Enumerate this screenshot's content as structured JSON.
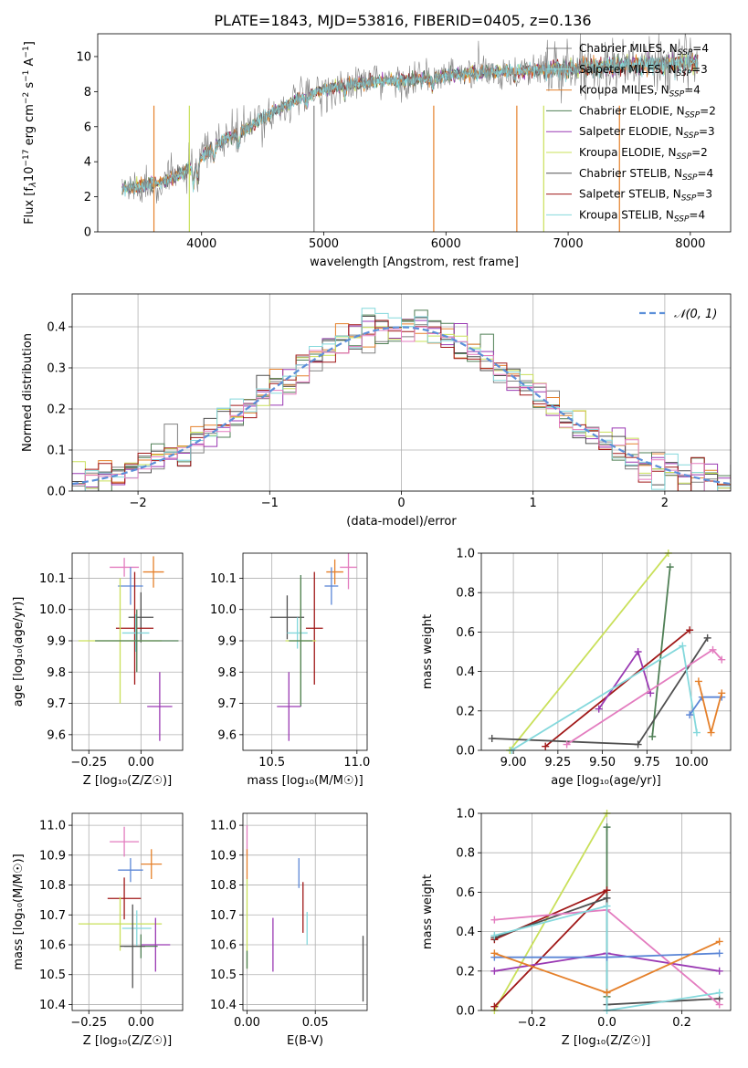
{
  "figure": {
    "title": "PLATE=1843, MJD=53816, FIBERID=0405, z=0.136"
  },
  "palette": {
    "Chabrier MILES": "#808080",
    "Salpeter MILES": "#90dbe0",
    "Kroupa MILES": "#e5802a",
    "Chabrier ELODIE": "#4f7f55",
    "Salpeter ELODIE": "#9a39b3",
    "Kroupa ELODIE": "#c9e05a",
    "Chabrier STELIB": "#505050",
    "Salpeter STELIB": "#a01818",
    "Kroupa STELIB": "#84d8dc",
    "pink": "#e37cbf",
    "blue": "#5b86d6",
    "gaussian": "#5b8fd9"
  },
  "chart_data": [
    {
      "id": "spectrum",
      "type": "line",
      "xlabel": "wavelength [Angstrom, rest frame]",
      "ylabel": "Flux [f$_\\lambda$10$^{-17}$ erg cm$^{-2}$ s$^{-1}$ A$^{-1}$]",
      "xlim": [
        3150,
        8330
      ],
      "ylim": [
        0,
        11.3
      ],
      "xticks": [
        4000,
        5000,
        6000,
        7000,
        8000
      ],
      "yticks": [
        0,
        2,
        4,
        6,
        8,
        10
      ],
      "legend_position": "upper-right",
      "legend": [
        {
          "label": "Chabrier MILES, N$_{SSP}$=4",
          "label_main": "Chabrier MILES, N",
          "label_sub": "SSP",
          "label_tail": "=4",
          "color": "#808080"
        },
        {
          "label": "Salpeter MILES, N$_{SSP}$=3",
          "label_main": "Salpeter MILES, N",
          "label_sub": "SSP",
          "label_tail": "=3",
          "color": "#90dbe0"
        },
        {
          "label": "Kroupa MILES, N$_{SSP}$=4",
          "label_main": "Kroupa MILES, N",
          "label_sub": "SSP",
          "label_tail": "=4",
          "color": "#e5802a"
        },
        {
          "label": "Chabrier ELODIE, N$_{SSP}$=2",
          "label_main": "Chabrier ELODIE, N",
          "label_sub": "SSP",
          "label_tail": "=2",
          "color": "#4f7f55"
        },
        {
          "label": "Salpeter ELODIE, N$_{SSP}$=3",
          "label_main": "Salpeter ELODIE, N",
          "label_sub": "SSP",
          "label_tail": "=3",
          "color": "#9a39b3"
        },
        {
          "label": "Kroupa ELODIE, N$_{SSP}$=2",
          "label_main": "Kroupa ELODIE, N",
          "label_sub": "SSP",
          "label_tail": "=2",
          "color": "#c9e05a"
        },
        {
          "label": "Chabrier STELIB, N$_{SSP}$=4",
          "label_main": "Chabrier STELIB, N",
          "label_sub": "SSP",
          "label_tail": "=4",
          "color": "#505050"
        },
        {
          "label": "Salpeter STELIB, N$_{SSP}$=3",
          "label_main": "Salpeter STELIB, N",
          "label_sub": "SSP",
          "label_tail": "=3",
          "color": "#a01818"
        },
        {
          "label": "Kroupa STELIB, N$_{SSP}$=4",
          "label_main": "Kroupa STELIB, N",
          "label_sub": "SSP",
          "label_tail": "=4",
          "color": "#84d8dc"
        }
      ],
      "continuum": [
        [
          3350,
          2.5
        ],
        [
          3500,
          2.6
        ],
        [
          3700,
          2.9
        ],
        [
          3850,
          3.4
        ],
        [
          3950,
          3.9
        ],
        [
          4050,
          4.6
        ],
        [
          4200,
          5.3
        ],
        [
          4400,
          6.0
        ],
        [
          4600,
          6.9
        ],
        [
          4800,
          7.6
        ],
        [
          5000,
          8.1
        ],
        [
          5200,
          8.4
        ],
        [
          5500,
          8.6
        ],
        [
          5800,
          8.7
        ],
        [
          6000,
          8.9
        ],
        [
          6300,
          9.1
        ],
        [
          6600,
          9.2
        ],
        [
          6900,
          9.3
        ],
        [
          7200,
          9.4
        ],
        [
          7500,
          9.5
        ],
        [
          7800,
          9.6
        ],
        [
          8050,
          9.6
        ]
      ]
    },
    {
      "id": "residuals",
      "type": "line",
      "xlabel": "(data-model)/error",
      "ylabel": "Normed distribution",
      "xlim": [
        -2.5,
        2.5
      ],
      "ylim": [
        0,
        0.48
      ],
      "xticks": [
        -2,
        -1,
        0,
        1,
        2
      ],
      "yticks": [
        0.0,
        0.1,
        0.2,
        0.3,
        0.4
      ],
      "legend_position": "upper-right",
      "legend": [
        {
          "label": "$\\mathcal{N}(0,1)$",
          "label_display": "𝒩(0, 1)",
          "color": "#5b8fd9"
        }
      ],
      "bin_width": 0.1,
      "histogram_colors": [
        "#808080",
        "#e5802a",
        "#4f7f55",
        "#9a39b3",
        "#c9e05a",
        "#505050",
        "#a01818",
        "#84d8dc",
        "#e37cbf"
      ]
    },
    {
      "id": "z-age",
      "type": "scatter",
      "xlabel": "Z [log$_{10}$(Z/Z$_\\odot$)]",
      "xlabel_display": "Z [log₁₀(Z/Z☉)]",
      "ylabel": "age  [log$_{10}$(age/yr)]",
      "ylabel_display": "age  [log₁₀(age/yr)]",
      "xlim": [
        -0.33,
        0.2
      ],
      "ylim": [
        9.55,
        10.18
      ],
      "xticks": [
        -0.25,
        0.0
      ],
      "xtick_labels": [
        "−0.25",
        "0.00"
      ],
      "yticks": [
        9.6,
        9.7,
        9.8,
        9.9,
        10.0,
        10.1
      ],
      "points": [
        {
          "x": -0.08,
          "y": 10.135,
          "xerr": 0.07,
          "yerr": 0.03,
          "color": "#e37cbf"
        },
        {
          "x": 0.06,
          "y": 10.12,
          "xerr": 0.05,
          "yerr": 0.05,
          "color": "#e5802a"
        },
        {
          "x": -0.05,
          "y": 10.075,
          "xerr": 0.06,
          "yerr": 0.06,
          "color": "#5b86d6"
        },
        {
          "x": 0.0,
          "y": 9.975,
          "xerr": 0.06,
          "yerr": 0.08,
          "color": "#505050"
        },
        {
          "x": -0.03,
          "y": 9.94,
          "xerr": 0.09,
          "yerr": 0.18,
          "color": "#a01818"
        },
        {
          "x": -0.025,
          "y": 9.925,
          "xerr": 0.065,
          "yerr": 0.06,
          "color": "#84d8dc"
        },
        {
          "x": -0.1,
          "y": 9.9,
          "xerr": 0.2,
          "yerr": 0.2,
          "color": "#c9e05a"
        },
        {
          "x": -0.02,
          "y": 9.9,
          "xerr": 0.2,
          "yerr": 0.1,
          "color": "#4f7f55"
        },
        {
          "x": 0.09,
          "y": 9.69,
          "xerr": 0.06,
          "yerr": 0.11,
          "color": "#9a39b3"
        }
      ]
    },
    {
      "id": "mass-age",
      "type": "scatter",
      "xlabel": "mass [log$_{10}$(M/M$_\\odot$)]",
      "xlabel_display": "mass [log₁₀(M/M☉)]",
      "ylabel": "",
      "xlim": [
        10.33,
        11.06
      ],
      "ylim": [
        9.55,
        10.18
      ],
      "xticks": [
        10.5,
        11.0
      ],
      "xtick_labels": [
        "10.5",
        "11.0"
      ],
      "yticks": [
        9.6,
        9.7,
        9.8,
        9.9,
        10.0,
        10.1
      ],
      "points": [
        {
          "x": 10.95,
          "y": 10.135,
          "xerr": 0.05,
          "yerr": 0.07,
          "color": "#e37cbf"
        },
        {
          "x": 10.87,
          "y": 10.12,
          "xerr": 0.05,
          "yerr": 0.04,
          "color": "#e5802a"
        },
        {
          "x": 10.85,
          "y": 10.075,
          "xerr": 0.04,
          "yerr": 0.06,
          "color": "#5b86d6"
        },
        {
          "x": 10.59,
          "y": 9.975,
          "xerr": 0.1,
          "yerr": 0.07,
          "color": "#505050"
        },
        {
          "x": 10.75,
          "y": 9.94,
          "xerr": 0.05,
          "yerr": 0.18,
          "color": "#a01818"
        },
        {
          "x": 10.65,
          "y": 9.925,
          "xerr": 0.06,
          "yerr": 0.05,
          "color": "#84d8dc"
        },
        {
          "x": 10.67,
          "y": 9.9,
          "xerr": 0.09,
          "yerr": 0.2,
          "color": "#c9e05a"
        },
        {
          "x": 10.67,
          "y": 9.9,
          "xerr": 0.07,
          "yerr": 0.21,
          "color": "#4f7f55"
        },
        {
          "x": 10.6,
          "y": 9.69,
          "xerr": 0.07,
          "yerr": 0.11,
          "color": "#9a39b3"
        }
      ]
    },
    {
      "id": "weight-age",
      "type": "line",
      "xlabel": "age  [log$_{10}$(age/yr)]",
      "xlabel_display": "age  [log₁₀(age/yr)]",
      "ylabel": "mass weight",
      "xlim": [
        8.82,
        10.22
      ],
      "ylim": [
        0,
        1.0
      ],
      "xticks": [
        9.0,
        9.25,
        9.5,
        9.75,
        10.0
      ],
      "xtick_labels": [
        "9.00",
        "9.25",
        "9.50",
        "9.75",
        "10.00"
      ],
      "yticks": [
        0.0,
        0.2,
        0.4,
        0.6,
        0.8,
        1.0
      ],
      "series": [
        {
          "color": "#c9e05a",
          "x": [
            8.98,
            9.87
          ],
          "y": [
            0.0,
            1.0
          ]
        },
        {
          "color": "#4f7f55",
          "x": [
            9.78,
            9.88
          ],
          "y": [
            0.07,
            0.93
          ]
        },
        {
          "color": "#a01818",
          "x": [
            9.18,
            9.99
          ],
          "y": [
            0.02,
            0.61
          ]
        },
        {
          "color": "#505050",
          "x": [
            8.88,
            9.7,
            10.09
          ],
          "y": [
            0.06,
            0.03,
            0.57
          ]
        },
        {
          "color": "#9a39b3",
          "x": [
            9.48,
            9.7,
            9.77
          ],
          "y": [
            0.21,
            0.5,
            0.29
          ]
        },
        {
          "color": "#e37cbf",
          "x": [
            9.3,
            10.12,
            10.17
          ],
          "y": [
            0.03,
            0.51,
            0.46
          ]
        },
        {
          "color": "#84d8dc",
          "x": [
            8.99,
            9.95,
            10.03
          ],
          "y": [
            0.0,
            0.53,
            0.09
          ]
        },
        {
          "color": "#5b86d6",
          "x": [
            9.99,
            10.06,
            10.17
          ],
          "y": [
            0.18,
            0.27,
            0.27
          ]
        },
        {
          "color": "#e5802a",
          "x": [
            10.04,
            10.11,
            10.17
          ],
          "y": [
            0.35,
            0.09,
            0.29
          ]
        }
      ]
    },
    {
      "id": "z-mass",
      "type": "scatter",
      "xlabel": "Z [log$_{10}$(Z/Z$_\\odot$)]",
      "xlabel_display": "Z [log₁₀(Z/Z☉)]",
      "ylabel": "mass [log$_{10}$(M/M$_\\odot$)]",
      "ylabel_display": "mass [log₁₀(M/M☉)]",
      "xlim": [
        -0.33,
        0.2
      ],
      "ylim": [
        10.38,
        11.04
      ],
      "xticks": [
        -0.25,
        0.0
      ],
      "xtick_labels": [
        "−0.25",
        "0.00"
      ],
      "yticks": [
        10.4,
        10.5,
        10.6,
        10.7,
        10.8,
        10.9,
        11.0
      ],
      "points": [
        {
          "x": -0.08,
          "y": 10.945,
          "xerr": 0.07,
          "yerr": 0.05,
          "color": "#e37cbf"
        },
        {
          "x": 0.05,
          "y": 10.87,
          "xerr": 0.05,
          "yerr": 0.05,
          "color": "#e5802a"
        },
        {
          "x": -0.05,
          "y": 10.85,
          "xerr": 0.06,
          "yerr": 0.04,
          "color": "#5b86d6"
        },
        {
          "x": -0.08,
          "y": 10.755,
          "xerr": 0.08,
          "yerr": 0.07,
          "color": "#a01818"
        },
        {
          "x": -0.1,
          "y": 10.67,
          "xerr": 0.2,
          "yerr": 0.09,
          "color": "#c9e05a"
        },
        {
          "x": -0.02,
          "y": 10.655,
          "xerr": 0.07,
          "yerr": 0.06,
          "color": "#84d8dc"
        },
        {
          "x": 0.07,
          "y": 10.6,
          "xerr": 0.07,
          "yerr": 0.09,
          "color": "#9a39b3"
        },
        {
          "x": 0.0,
          "y": 10.595,
          "xerr": 0.08,
          "yerr": 0.04,
          "color": "#4f7f55"
        },
        {
          "x": -0.04,
          "y": 10.595,
          "xerr": 0.06,
          "yerr": 0.14,
          "color": "#505050"
        }
      ]
    },
    {
      "id": "ebv-mass",
      "type": "scatter",
      "xlabel": "E(B-V)",
      "ylabel": "",
      "xlim": [
        -0.003,
        0.088
      ],
      "ylim": [
        10.38,
        11.04
      ],
      "xticks": [
        0.0,
        0.05
      ],
      "xtick_labels": [
        "0.00",
        "0.05"
      ],
      "yticks": [
        10.4,
        10.5,
        10.6,
        10.7,
        10.8,
        10.9,
        11.0
      ],
      "points": [
        {
          "x": 0.0,
          "y": 10.95,
          "xerr": 0,
          "yerr": 0.05,
          "color": "#e37cbf"
        },
        {
          "x": 0.0,
          "y": 10.87,
          "xerr": 0,
          "yerr": 0.05,
          "color": "#e5802a"
        },
        {
          "x": 0.0,
          "y": 10.67,
          "xerr": 0,
          "yerr": 0.15,
          "color": "#c9e05a"
        },
        {
          "x": 0.0,
          "y": 10.55,
          "xerr": 0,
          "yerr": 0.03,
          "color": "#4f7f55"
        },
        {
          "x": 0.019,
          "y": 10.6,
          "xerr": 0,
          "yerr": 0.09,
          "color": "#9a39b3"
        },
        {
          "x": 0.038,
          "y": 10.84,
          "xerr": 0,
          "yerr": 0.05,
          "color": "#5b86d6"
        },
        {
          "x": 0.041,
          "y": 10.725,
          "xerr": 0,
          "yerr": 0.085,
          "color": "#a01818"
        },
        {
          "x": 0.044,
          "y": 10.655,
          "xerr": 0,
          "yerr": 0.055,
          "color": "#84d8dc"
        },
        {
          "x": 0.085,
          "y": 10.52,
          "xerr": 0,
          "yerr": 0.11,
          "color": "#505050"
        }
      ]
    },
    {
      "id": "weight-z",
      "type": "line",
      "xlabel": "Z [log$_{10}$(Z/Z$_\\odot$)]",
      "xlabel_display": "Z [log₁₀(Z/Z☉)]",
      "ylabel": "mass weight",
      "xlim": [
        -0.335,
        0.33
      ],
      "ylim": [
        0,
        1.0
      ],
      "xticks": [
        -0.2,
        0.0,
        0.2
      ],
      "xtick_labels": [
        "−0.2",
        "0.0",
        "0.2"
      ],
      "yticks": [
        0.0,
        0.2,
        0.4,
        0.6,
        0.8,
        1.0
      ],
      "series": [
        {
          "color": "#c9e05a",
          "x": [
            -0.3,
            0.0
          ],
          "y": [
            0.0,
            1.0
          ]
        },
        {
          "color": "#4f7f55",
          "x": [
            0.0,
            0.0
          ],
          "y": [
            0.07,
            0.93
          ]
        },
        {
          "color": "#a01818",
          "x": [
            -0.3,
            0.0,
            -0.3
          ],
          "y": [
            0.02,
            0.61,
            0.36
          ]
        },
        {
          "color": "#505050",
          "x": [
            -0.3,
            0.0,
            0.0,
            0.3
          ],
          "y": [
            0.37,
            0.57,
            0.03,
            0.06
          ]
        },
        {
          "color": "#9a39b3",
          "x": [
            -0.3,
            0.0,
            0.3
          ],
          "y": [
            0.2,
            0.29,
            0.2
          ]
        },
        {
          "color": "#e37cbf",
          "x": [
            -0.3,
            0.0,
            0.3
          ],
          "y": [
            0.46,
            0.51,
            0.03
          ]
        },
        {
          "color": "#84d8dc",
          "x": [
            -0.3,
            0.0,
            0.0,
            0.3
          ],
          "y": [
            0.38,
            0.53,
            0.0,
            0.09
          ]
        },
        {
          "color": "#5b86d6",
          "x": [
            -0.3,
            0.0,
            0.3
          ],
          "y": [
            0.27,
            0.27,
            0.29
          ]
        },
        {
          "color": "#e5802a",
          "x": [
            -0.3,
            0.0,
            0.3
          ],
          "y": [
            0.29,
            0.09,
            0.35
          ]
        }
      ]
    }
  ]
}
